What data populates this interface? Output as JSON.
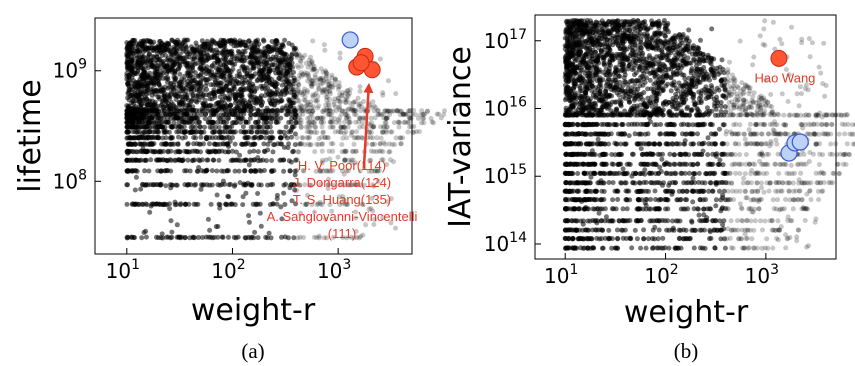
{
  "chart_data": [
    {
      "type": "scatter",
      "panel": "a",
      "caption": "(a)",
      "xlabel": "weight-r",
      "ylabel": "lifetime",
      "xscale": "log",
      "yscale": "log",
      "xlim": [
        5,
        5000
      ],
      "ylim": [
        22000000.0,
        3000000000.0
      ],
      "grid": false,
      "xticks": [
        {
          "base": "10",
          "exp": "1",
          "value": 10
        },
        {
          "base": "10",
          "exp": "2",
          "value": 100
        },
        {
          "base": "10",
          "exp": "3",
          "value": 1000
        }
      ],
      "yticks": [
        {
          "base": "10",
          "exp": "8",
          "value": 100000000.0
        },
        {
          "base": "10",
          "exp": "9",
          "value": 1000000000.0
        }
      ],
      "background": {
        "x_range": [
          10,
          4000
        ],
        "y_range": [
          30000000.0,
          1900000000.0
        ],
        "discrete_levels": [
          31000000.0,
          62000000.0,
          93000000.0,
          124000000.0,
          155000000.0,
          186000000.0,
          217000000.0,
          248000000.0,
          279000000.0,
          310000000.0,
          341000000.0,
          372000000.0,
          403000000.0,
          434000000.0
        ]
      },
      "highlight_red": [
        {
          "x": 1500,
          "y": 1080000000.0
        },
        {
          "x": 1800,
          "y": 1350000000.0
        },
        {
          "x": 2100,
          "y": 1020000000.0
        },
        {
          "x": 1650,
          "y": 1180000000.0
        }
      ],
      "highlight_blue": [
        {
          "x": 1300,
          "y": 1900000000.0
        }
      ],
      "arrow": {
        "from": {
          "x": 1750,
          "y": 130000000.0
        },
        "to": {
          "x": 1950,
          "y": 730000000.0
        }
      },
      "annotation_lines": [
        "H. V. Poor(114)",
        "J. Dongarra(124)",
        "T. S. Huang(135)",
        "A. Sangiovanni-Vincentelli",
        "(111)"
      ],
      "colors": {
        "points": "#000000",
        "highlight_red": "#ff5533",
        "highlight_blue": "#bcd3f5",
        "annotation": "#e53a28"
      }
    },
    {
      "type": "scatter",
      "panel": "b",
      "caption": "(b)",
      "xlabel": "weight-r",
      "ylabel": "IAT-variance",
      "xscale": "log",
      "yscale": "log",
      "xlim": [
        5,
        5000
      ],
      "ylim": [
        60000000000000.0,
        2.4e+17
      ],
      "grid": false,
      "xticks": [
        {
          "base": "10",
          "exp": "1",
          "value": 10
        },
        {
          "base": "10",
          "exp": "2",
          "value": 100
        },
        {
          "base": "10",
          "exp": "3",
          "value": 1000
        }
      ],
      "yticks": [
        {
          "base": "10",
          "exp": "14",
          "value": 100000000000000.0
        },
        {
          "base": "10",
          "exp": "15",
          "value": 1000000000000000.0
        },
        {
          "base": "10",
          "exp": "16",
          "value": 1e+16
        },
        {
          "base": "10",
          "exp": "17",
          "value": 1e+17
        }
      ],
      "background": {
        "x_range": [
          10,
          4000
        ],
        "y_range": [
          85000000000000.0,
          2e+17
        ],
        "discrete_levels": [
          87000000000000.0,
          120000000000000.0,
          160000000000000.0,
          220000000000000.0,
          330000000000000.0,
          450000000000000.0,
          600000000000000.0,
          800000000000000.0,
          1100000000000000.0,
          1500000000000000.0,
          2100000000000000.0,
          3000000000000000.0,
          4200000000000000.0,
          5800000000000000.0,
          8000000000000000.0
        ]
      },
      "highlight_red": [
        {
          "x": 1350,
          "y": 5.5e+16
        }
      ],
      "highlight_blue": [
        {
          "x": 1700,
          "y": 2200000000000000.0
        },
        {
          "x": 1950,
          "y": 3100000000000000.0
        },
        {
          "x": 2200,
          "y": 3200000000000000.0
        }
      ],
      "annotation_lines": [
        "Hao Wang"
      ],
      "colors": {
        "points": "#000000",
        "highlight_red": "#ff5533",
        "highlight_blue": "#bcd3f5",
        "annotation": "#e53a28"
      }
    }
  ]
}
